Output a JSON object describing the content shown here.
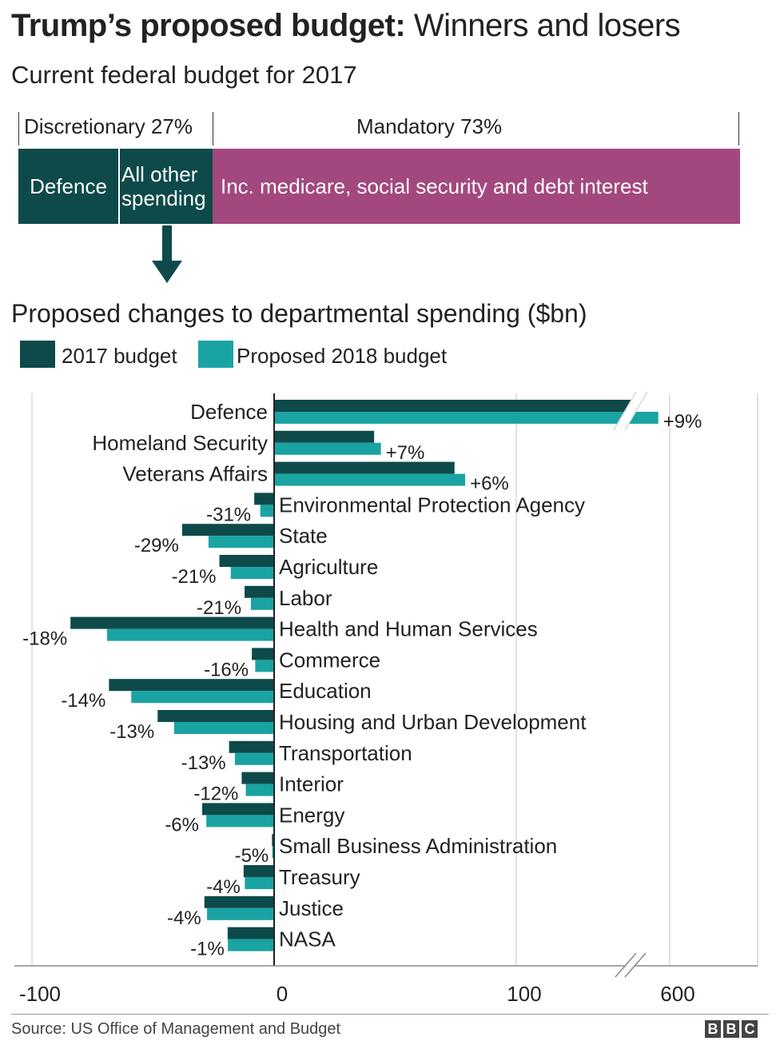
{
  "header": {
    "title_bold": "Trump’s proposed budget:",
    "title_rest": "Winners and losers",
    "subtitle": "Current federal budget for 2017"
  },
  "split": {
    "discretionary_label": "Discretionary 27%",
    "mandatory_label": "Mandatory 73%",
    "discretionary_share": 27,
    "mandatory_share": 73,
    "defence_label": "Defence",
    "other_label_line1": "All other",
    "other_label_line2": "spending",
    "mandatory_desc": "Inc. medicare, social security and debt interest"
  },
  "section2_title": "Proposed changes to departmental spending ($bn)",
  "legend": {
    "budget_2017": "2017 budget",
    "budget_2018": "Proposed 2018 budget"
  },
  "colors": {
    "dark": "#0e4a4a",
    "teal": "#1aa3a3",
    "magenta": "#a3487e"
  },
  "chart_data": {
    "type": "bar",
    "orientation": "horizontal",
    "title": "Proposed changes to departmental spending ($bn)",
    "x_axis_break": "between 100 and 600",
    "xticks": [
      "-100",
      "0",
      "100",
      "600"
    ],
    "series": [
      {
        "name": "2017 budget",
        "color": "#0e4a4a"
      },
      {
        "name": "Proposed 2018 budget",
        "color": "#1aa3a3"
      }
    ],
    "departments": [
      {
        "name": "Defence",
        "v2017": 521,
        "v2018": 574,
        "change": "+9%",
        "axis_broken": true
      },
      {
        "name": "Homeland Security",
        "v2017": 41.3,
        "v2018": 44.1,
        "change": "+7%"
      },
      {
        "name": "Veterans Affairs",
        "v2017": 74.5,
        "v2018": 78.9,
        "change": "+6%"
      },
      {
        "name": "Environmental Protection Agency",
        "v2017": -8.2,
        "v2018": -5.7,
        "change": "-31%"
      },
      {
        "name": "State",
        "v2017": -38,
        "v2018": -27.1,
        "change": "-29%"
      },
      {
        "name": "Agriculture",
        "v2017": -22.6,
        "v2018": -17.9,
        "change": "-21%"
      },
      {
        "name": "Labor",
        "v2017": -12.2,
        "v2018": -9.6,
        "change": "-21%"
      },
      {
        "name": "Health and Human Services",
        "v2017": -84.1,
        "v2018": -69,
        "change": "-18%"
      },
      {
        "name": "Commerce",
        "v2017": -9.2,
        "v2018": -7.8,
        "change": "-16%"
      },
      {
        "name": "Education",
        "v2017": -68.2,
        "v2018": -59,
        "change": "-14%"
      },
      {
        "name": "Housing and Urban Development",
        "v2017": -48.1,
        "v2018": -41.3,
        "change": "-13%"
      },
      {
        "name": "Transportation",
        "v2017": -18.6,
        "v2018": -16.2,
        "change": "-13%"
      },
      {
        "name": "Interior",
        "v2017": -13.4,
        "v2018": -11.7,
        "change": "-12%"
      },
      {
        "name": "Energy",
        "v2017": -29.7,
        "v2018": -28,
        "change": "-6%"
      },
      {
        "name": "Small Business Administration",
        "v2017": -0.9,
        "v2018": -0.8,
        "change": "-5%"
      },
      {
        "name": "Treasury",
        "v2017": -12.6,
        "v2018": -12.1,
        "change": "-4%"
      },
      {
        "name": "Justice",
        "v2017": -28.8,
        "v2018": -27.7,
        "change": "-4%"
      },
      {
        "name": "NASA",
        "v2017": -19.2,
        "v2018": -19.1,
        "change": "-1%"
      }
    ]
  },
  "footer": {
    "source": "Source: US Office of Management and Budget",
    "logo_letters": [
      "B",
      "B",
      "C"
    ]
  }
}
